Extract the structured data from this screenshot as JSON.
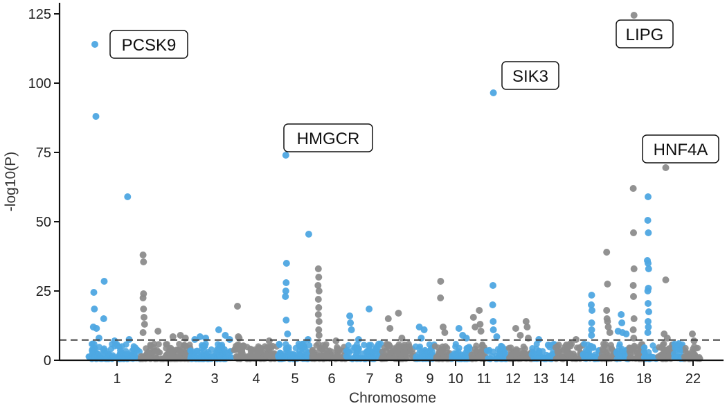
{
  "chart_data": {
    "type": "scatter",
    "subtype": "manhattan",
    "title": "",
    "xlabel": "Chromosome",
    "ylabel": "-log10(P)",
    "ylim": [
      0,
      128
    ],
    "yticks": [
      0,
      25,
      50,
      75,
      100,
      125
    ],
    "threshold": 7.3,
    "threshold_style": "dashed",
    "grid": false,
    "colors": {
      "odd": "#4ea7e2",
      "even": "#8c8c8c",
      "threshold": "#444444"
    },
    "x_tick_labels": [
      "1",
      "2",
      "3",
      "4",
      "5",
      "6",
      "7",
      "8",
      "9",
      "10",
      "11",
      "12",
      "13",
      "14",
      "16",
      "18",
      "22"
    ],
    "chromosomes": [
      {
        "chr": "1",
        "tick": "1",
        "peaks": [
          [
            0.12,
            114
          ],
          [
            0.14,
            88
          ],
          [
            0.1,
            24.5
          ],
          [
            0.11,
            18.5
          ],
          [
            0.3,
            28.5
          ],
          [
            0.29,
            15
          ],
          [
            0.09,
            12
          ],
          [
            0.15,
            11.5
          ],
          [
            0.2,
            8
          ],
          [
            0.5,
            7
          ],
          [
            0.75,
            59
          ],
          [
            0.78,
            7.5
          ]
        ]
      },
      {
        "chr": "2",
        "tick": "2",
        "peaks": [
          [
            0.05,
            38
          ],
          [
            0.06,
            35.5
          ],
          [
            0.06,
            24
          ],
          [
            0.05,
            22.5
          ],
          [
            0.06,
            18.5
          ],
          [
            0.07,
            15.5
          ],
          [
            0.08,
            13
          ],
          [
            0.05,
            10
          ],
          [
            0.35,
            10.5
          ],
          [
            0.65,
            8.5
          ],
          [
            0.8,
            9
          ],
          [
            0.9,
            8
          ]
        ]
      },
      {
        "chr": "3",
        "tick": "3",
        "peaks": [
          [
            0.1,
            7.5
          ],
          [
            0.22,
            8.5
          ],
          [
            0.35,
            8
          ],
          [
            0.65,
            11
          ],
          [
            0.8,
            9
          ],
          [
            0.9,
            7.5
          ]
        ]
      },
      {
        "chr": "4",
        "tick": "4",
        "peaks": [
          [
            0.08,
            19.5
          ],
          [
            0.1,
            8.5
          ],
          [
            0.12,
            8
          ],
          [
            0.82,
            7
          ]
        ]
      },
      {
        "chr": "5",
        "tick": "5",
        "peaks": [
          [
            0.25,
            74
          ],
          [
            0.27,
            35
          ],
          [
            0.26,
            28
          ],
          [
            0.25,
            25
          ],
          [
            0.24,
            23
          ],
          [
            0.26,
            14.5
          ],
          [
            0.3,
            9.5
          ],
          [
            0.9,
            45.5
          ],
          [
            0.88,
            7.5
          ]
        ]
      },
      {
        "chr": "6",
        "tick": "6",
        "peaks": [
          [
            0.18,
            33
          ],
          [
            0.19,
            30
          ],
          [
            0.17,
            27
          ],
          [
            0.2,
            25
          ],
          [
            0.18,
            22
          ],
          [
            0.19,
            19
          ],
          [
            0.18,
            16.5
          ],
          [
            0.2,
            14
          ],
          [
            0.19,
            11
          ],
          [
            0.2,
            9
          ],
          [
            0.7,
            7
          ]
        ]
      },
      {
        "chr": "7",
        "tick": "7",
        "peaks": [
          [
            0.1,
            16
          ],
          [
            0.12,
            13.5
          ],
          [
            0.15,
            11
          ],
          [
            0.35,
            7.5
          ],
          [
            0.65,
            18.5
          ]
        ]
      },
      {
        "chr": "8",
        "tick": "8",
        "peaks": [
          [
            0.2,
            15
          ],
          [
            0.25,
            11.5
          ],
          [
            0.5,
            17
          ],
          [
            0.6,
            8
          ]
        ]
      },
      {
        "chr": "9",
        "tick": "9",
        "peaks": [
          [
            0.2,
            12
          ],
          [
            0.3,
            8
          ],
          [
            0.45,
            11
          ]
        ]
      },
      {
        "chr": "9b",
        "tick": "",
        "peaks": [
          [
            0.35,
            28.5
          ],
          [
            0.34,
            22.5
          ],
          [
            0.5,
            12
          ],
          [
            0.6,
            10
          ]
        ]
      },
      {
        "chr": "10",
        "tick": "10",
        "peaks": [
          [
            0.4,
            11.5
          ],
          [
            0.6,
            9
          ],
          [
            0.8,
            8
          ]
        ]
      },
      {
        "chr": "11",
        "tick": "11",
        "peaks": [
          [
            0.2,
            15.5
          ],
          [
            0.3,
            12
          ],
          [
            0.55,
            18
          ],
          [
            0.6,
            13
          ],
          [
            0.65,
            10.5
          ]
        ]
      },
      {
        "chr": "11b",
        "tick": "",
        "peaks": [
          [
            0.3,
            96.5
          ],
          [
            0.28,
            27
          ],
          [
            0.27,
            20
          ],
          [
            0.29,
            14
          ],
          [
            0.3,
            11
          ],
          [
            0.45,
            8.5
          ]
        ]
      },
      {
        "chr": "12",
        "tick": "12",
        "peaks": [
          [
            0.3,
            11.5
          ],
          [
            0.5,
            9
          ],
          [
            0.75,
            14
          ],
          [
            0.8,
            12
          ],
          [
            0.85,
            8
          ]
        ]
      },
      {
        "chr": "13",
        "tick": "13",
        "peaks": [
          [
            0.3,
            7.5
          ],
          [
            0.7,
            5.5
          ]
        ]
      },
      {
        "chr": "14",
        "tick": "14",
        "peaks": [
          [
            0.4,
            5.5
          ],
          [
            0.75,
            7.5
          ]
        ]
      },
      {
        "chr": "15",
        "tick": "",
        "peaks": [
          [
            0.5,
            23.5
          ],
          [
            0.48,
            20
          ],
          [
            0.52,
            18
          ],
          [
            0.5,
            13.5
          ],
          [
            0.5,
            11
          ],
          [
            0.49,
            9
          ]
        ]
      },
      {
        "chr": "16",
        "tick": "16",
        "peaks": [
          [
            0.4,
            39
          ],
          [
            0.45,
            27.5
          ],
          [
            0.4,
            18
          ],
          [
            0.42,
            15
          ],
          [
            0.45,
            14
          ],
          [
            0.5,
            12
          ],
          [
            0.6,
            10
          ]
        ]
      },
      {
        "chr": "17",
        "tick": "",
        "peaks": [
          [
            0.15,
            10.5
          ],
          [
            0.4,
            16.5
          ],
          [
            0.45,
            13.5
          ],
          [
            0.5,
            10
          ],
          [
            0.8,
            9.5
          ]
        ]
      },
      {
        "chr": "18",
        "tick": "18",
        "peaks": [
          [
            0.35,
            124.5
          ],
          [
            0.3,
            62
          ],
          [
            0.32,
            46
          ],
          [
            0.35,
            33
          ],
          [
            0.3,
            27
          ],
          [
            0.32,
            23
          ],
          [
            0.35,
            15
          ],
          [
            0.3,
            11
          ],
          [
            0.33,
            8
          ]
        ]
      },
      {
        "chr": "19",
        "tick": "",
        "peaks": [
          [
            0.3,
            59
          ],
          [
            0.28,
            50.5
          ],
          [
            0.32,
            46
          ],
          [
            0.25,
            36
          ],
          [
            0.3,
            35
          ],
          [
            0.34,
            33
          ],
          [
            0.32,
            26
          ],
          [
            0.28,
            25
          ],
          [
            0.3,
            20.5
          ],
          [
            0.35,
            17.5
          ],
          [
            0.3,
            14
          ],
          [
            0.32,
            12
          ],
          [
            0.28,
            10
          ]
        ]
      },
      {
        "chr": "20",
        "tick": "",
        "peaks": [
          [
            0.5,
            69.5
          ],
          [
            0.5,
            29
          ],
          [
            0.4,
            9.5
          ],
          [
            0.6,
            8
          ]
        ]
      },
      {
        "chr": "21",
        "tick": "",
        "peaks": [
          [
            0.5,
            6
          ]
        ]
      },
      {
        "chr": "22",
        "tick": "22",
        "peaks": [
          [
            0.5,
            9.5
          ],
          [
            0.6,
            7
          ]
        ]
      }
    ],
    "annotations": [
      {
        "gene": "PCSK9",
        "chr": "1",
        "pos": 0.12,
        "y": 114
      },
      {
        "gene": "HMGCR",
        "chr": "5",
        "pos": 0.25,
        "y": 74
      },
      {
        "gene": "SIK3",
        "chr": "11b",
        "pos": 0.3,
        "y": 96.5
      },
      {
        "gene": "LIPG",
        "chr": "18",
        "pos": 0.35,
        "y": 124.5
      },
      {
        "gene": "HNF4A",
        "chr": "20",
        "pos": 0.5,
        "y": 69.5
      }
    ]
  }
}
